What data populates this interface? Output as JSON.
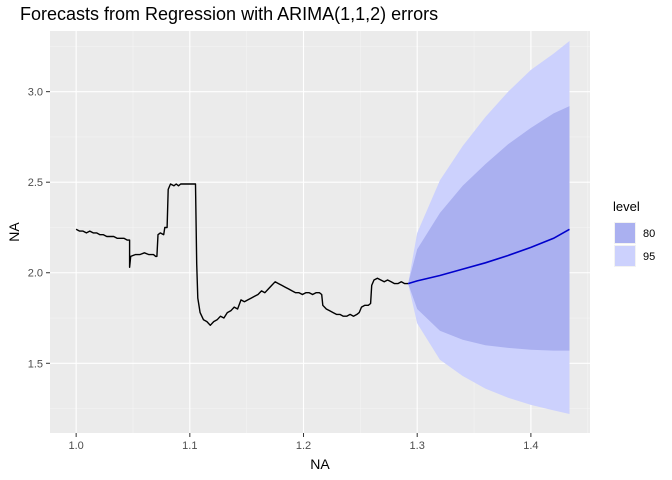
{
  "chart_data": {
    "type": "line",
    "title": "Forecasts from Regression with ARIMA(1,1,2) errors",
    "xlabel": "NA",
    "ylabel": "NA",
    "xlim": [
      0.977,
      1.452
    ],
    "ylim": [
      1.115,
      3.335
    ],
    "x_ticks": [
      {
        "value": 1.0,
        "label": "1.0"
      },
      {
        "value": 1.1,
        "label": "1.1"
      },
      {
        "value": 1.2,
        "label": "1.2"
      },
      {
        "value": 1.3,
        "label": "1.3"
      },
      {
        "value": 1.4,
        "label": "1.4"
      }
    ],
    "y_ticks": [
      {
        "value": 1.5,
        "label": "1.5"
      },
      {
        "value": 2.0,
        "label": "2.0"
      },
      {
        "value": 2.5,
        "label": "2.5"
      },
      {
        "value": 3.0,
        "label": "3.0"
      }
    ],
    "grid": true,
    "legend_position": "right",
    "legend_title": "level",
    "colors": {
      "panel": "#ebebeb",
      "grid_major": "#ffffff",
      "grid_minor": "#f4f4f4",
      "history": "#000000",
      "forecast": "#0000cc",
      "band80": "#aab0f0",
      "band95": "#ccd1fd"
    },
    "series": [
      {
        "role": "history",
        "points": [
          [
            1.0,
            2.24
          ],
          [
            1.003,
            2.23
          ],
          [
            1.006,
            2.23
          ],
          [
            1.009,
            2.22
          ],
          [
            1.012,
            2.23
          ],
          [
            1.015,
            2.22
          ],
          [
            1.018,
            2.22
          ],
          [
            1.021,
            2.21
          ],
          [
            1.024,
            2.21
          ],
          [
            1.027,
            2.2
          ],
          [
            1.03,
            2.2
          ],
          [
            1.033,
            2.2
          ],
          [
            1.036,
            2.19
          ],
          [
            1.039,
            2.19
          ],
          [
            1.042,
            2.19
          ],
          [
            1.045,
            2.18
          ],
          [
            1.047,
            2.18
          ],
          [
            1.047,
            2.03
          ],
          [
            1.048,
            2.09
          ],
          [
            1.052,
            2.1
          ],
          [
            1.056,
            2.1
          ],
          [
            1.06,
            2.11
          ],
          [
            1.064,
            2.1
          ],
          [
            1.068,
            2.1
          ],
          [
            1.07,
            2.09
          ],
          [
            1.071,
            2.09
          ],
          [
            1.072,
            2.21
          ],
          [
            1.074,
            2.22
          ],
          [
            1.077,
            2.21
          ],
          [
            1.078,
            2.25
          ],
          [
            1.08,
            2.25
          ],
          [
            1.081,
            2.46
          ],
          [
            1.083,
            2.49
          ],
          [
            1.086,
            2.48
          ],
          [
            1.088,
            2.49
          ],
          [
            1.09,
            2.48
          ],
          [
            1.092,
            2.49
          ],
          [
            1.096,
            2.49
          ],
          [
            1.1,
            2.49
          ],
          [
            1.104,
            2.49
          ],
          [
            1.105,
            2.49
          ],
          [
            1.106,
            2.05
          ],
          [
            1.107,
            1.86
          ],
          [
            1.109,
            1.78
          ],
          [
            1.112,
            1.74
          ],
          [
            1.115,
            1.73
          ],
          [
            1.118,
            1.71
          ],
          [
            1.121,
            1.73
          ],
          [
            1.124,
            1.74
          ],
          [
            1.127,
            1.76
          ],
          [
            1.13,
            1.75
          ],
          [
            1.133,
            1.78
          ],
          [
            1.136,
            1.79
          ],
          [
            1.139,
            1.81
          ],
          [
            1.142,
            1.8
          ],
          [
            1.145,
            1.85
          ],
          [
            1.148,
            1.84
          ],
          [
            1.151,
            1.85
          ],
          [
            1.154,
            1.86
          ],
          [
            1.157,
            1.87
          ],
          [
            1.16,
            1.88
          ],
          [
            1.163,
            1.9
          ],
          [
            1.166,
            1.89
          ],
          [
            1.169,
            1.91
          ],
          [
            1.172,
            1.93
          ],
          [
            1.175,
            1.95
          ],
          [
            1.178,
            1.94
          ],
          [
            1.181,
            1.93
          ],
          [
            1.184,
            1.92
          ],
          [
            1.187,
            1.91
          ],
          [
            1.19,
            1.9
          ],
          [
            1.193,
            1.89
          ],
          [
            1.196,
            1.89
          ],
          [
            1.199,
            1.88
          ],
          [
            1.202,
            1.89
          ],
          [
            1.205,
            1.89
          ],
          [
            1.208,
            1.88
          ],
          [
            1.211,
            1.89
          ],
          [
            1.214,
            1.89
          ],
          [
            1.216,
            1.88
          ],
          [
            1.217,
            1.82
          ],
          [
            1.22,
            1.8
          ],
          [
            1.223,
            1.79
          ],
          [
            1.226,
            1.78
          ],
          [
            1.229,
            1.77
          ],
          [
            1.232,
            1.77
          ],
          [
            1.235,
            1.76
          ],
          [
            1.238,
            1.76
          ],
          [
            1.241,
            1.77
          ],
          [
            1.244,
            1.76
          ],
          [
            1.247,
            1.77
          ],
          [
            1.249,
            1.78
          ],
          [
            1.251,
            1.81
          ],
          [
            1.254,
            1.82
          ],
          [
            1.257,
            1.82
          ],
          [
            1.259,
            1.83
          ],
          [
            1.26,
            1.93
          ],
          [
            1.262,
            1.96
          ],
          [
            1.265,
            1.97
          ],
          [
            1.268,
            1.96
          ],
          [
            1.271,
            1.95
          ],
          [
            1.274,
            1.96
          ],
          [
            1.277,
            1.95
          ],
          [
            1.28,
            1.94
          ],
          [
            1.283,
            1.94
          ],
          [
            1.286,
            1.95
          ],
          [
            1.289,
            1.94
          ],
          [
            1.292,
            1.94
          ]
        ]
      },
      {
        "role": "forecast",
        "x": [
          1.292,
          1.3,
          1.32,
          1.34,
          1.36,
          1.38,
          1.4,
          1.42,
          1.434
        ],
        "mean": [
          1.94,
          1.955,
          1.985,
          2.02,
          2.055,
          2.095,
          2.14,
          2.19,
          2.24
        ],
        "lo80": [
          1.94,
          1.8,
          1.68,
          1.63,
          1.6,
          1.585,
          1.575,
          1.57,
          1.57
        ],
        "hi80": [
          1.94,
          2.13,
          2.33,
          2.48,
          2.6,
          2.71,
          2.8,
          2.88,
          2.92
        ],
        "lo95": [
          1.94,
          1.72,
          1.52,
          1.43,
          1.36,
          1.31,
          1.27,
          1.24,
          1.22
        ],
        "hi95": [
          1.94,
          2.22,
          2.51,
          2.7,
          2.86,
          3.0,
          3.12,
          3.21,
          3.28
        ]
      }
    ],
    "legend": [
      {
        "label": "80",
        "color": "#aab0f0"
      },
      {
        "label": "95",
        "color": "#ccd1fd"
      }
    ]
  }
}
